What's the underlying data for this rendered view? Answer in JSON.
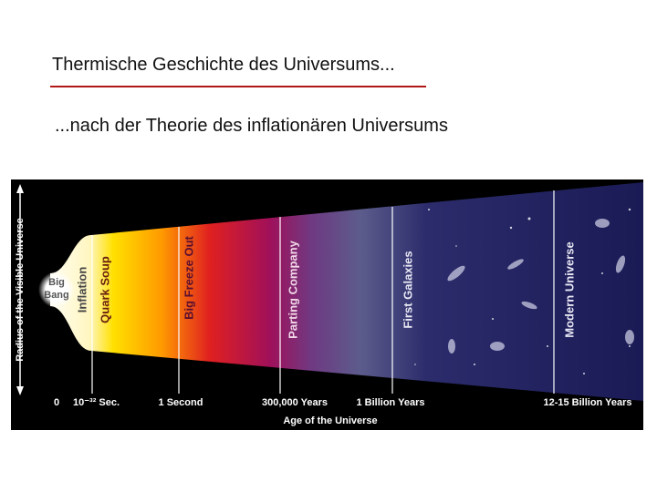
{
  "slide": {
    "title": "Thermische Geschichte des Universums...",
    "subtitle": "...nach der Theorie des inflationären Universums",
    "diagram": {
      "y_axis_label": "Radius of the Visible Universe",
      "x_axis_label": "Age of the Universe",
      "big_bang": [
        "Big",
        "Bang"
      ],
      "eras": [
        "Inflation",
        "Quark Soup",
        "Big Freeze Out",
        "Parting Company",
        "First Galaxies",
        "Modern Universe"
      ],
      "time_labels": [
        "0",
        "10⁻³² Sec.",
        "1 Second",
        "300,000 Years",
        "1 Billion Years",
        "12-15 Billion Years"
      ]
    }
  }
}
